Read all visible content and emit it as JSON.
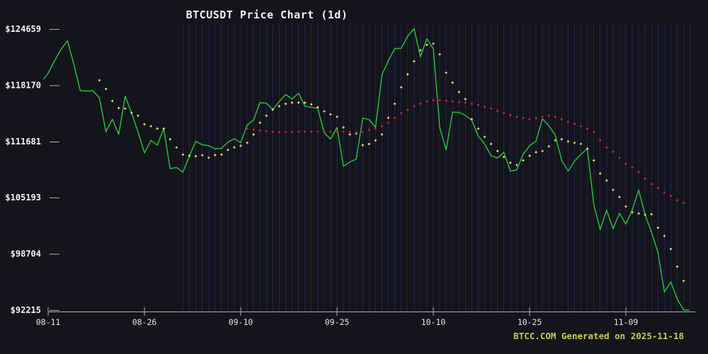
{
  "chart": {
    "title": "BTCUSDT Price Chart (1d)",
    "watermark": "BTCC.COM Generated on 2025-11-18"
  },
  "chart_data": {
    "type": "line",
    "title": "BTCUSDT Price Chart (1d)",
    "watermark": "BTCC.COM Generated on 2025-11-18",
    "x_axis": {
      "unit": "day index (0 = 08-11, daily candles)",
      "ticks": [
        {
          "day": 0,
          "label": "08-11"
        },
        {
          "day": 15,
          "label": "08-26"
        },
        {
          "day": 30,
          "label": "09-10"
        },
        {
          "day": 45,
          "label": "09-25"
        },
        {
          "day": 60,
          "label": "10-10"
        },
        {
          "day": 75,
          "label": "10-25"
        },
        {
          "day": 90,
          "label": "11-09"
        }
      ]
    },
    "y_axis": {
      "tick_values": [
        124659,
        118170,
        111681,
        105193,
        98704,
        92215
      ],
      "tick_labels": [
        "$124659",
        "$118170",
        "$111681",
        "$105193",
        "$98704",
        "$92215"
      ]
    },
    "grid": {
      "vertical_day_stripes_from_day": 21,
      "vertical_day_stripes_to_day": 100
    },
    "colors": {
      "background": "#14141c",
      "stripe": "#22224e",
      "price_line": "#25c83c",
      "ma_fast": "#e9e97f",
      "ma_slow": "#d8234a",
      "axis": "#b0b0b0",
      "x_tick_label": "#e4e4e4",
      "y_tick_label": "#f5f5f5"
    },
    "series": [
      {
        "name": "price",
        "style": "line",
        "color_key": "price_line",
        "points": [
          [
            -0.7,
            118900
          ],
          [
            0,
            119550
          ],
          [
            1,
            121000
          ],
          [
            2,
            122300
          ],
          [
            3,
            123300
          ],
          [
            4,
            120600
          ],
          [
            5,
            117550
          ],
          [
            6,
            117520
          ],
          [
            7,
            117520
          ],
          [
            8,
            116700
          ],
          [
            9,
            112800
          ],
          [
            10,
            114250
          ],
          [
            11,
            112500
          ],
          [
            12,
            116900
          ],
          [
            13,
            114950
          ],
          [
            14,
            112800
          ],
          [
            15,
            110350
          ],
          [
            16,
            111800
          ],
          [
            17,
            111260
          ],
          [
            18,
            113160
          ],
          [
            19,
            108540
          ],
          [
            20,
            108670
          ],
          [
            21,
            108130
          ],
          [
            22,
            110000
          ],
          [
            23,
            111700
          ],
          [
            24,
            111300
          ],
          [
            25,
            111200
          ],
          [
            26,
            110850
          ],
          [
            27,
            110900
          ],
          [
            28,
            111600
          ],
          [
            29,
            112000
          ],
          [
            30,
            111550
          ],
          [
            31,
            113570
          ],
          [
            32,
            114150
          ],
          [
            33,
            116160
          ],
          [
            34,
            116100
          ],
          [
            35,
            115350
          ],
          [
            36,
            116300
          ],
          [
            37,
            117100
          ],
          [
            38,
            116580
          ],
          [
            39,
            117250
          ],
          [
            40,
            115760
          ],
          [
            41,
            115620
          ],
          [
            42,
            115500
          ],
          [
            43,
            112700
          ],
          [
            44,
            111950
          ],
          [
            45,
            113300
          ],
          [
            46,
            108810
          ],
          [
            47,
            109300
          ],
          [
            48,
            109650
          ],
          [
            49,
            114390
          ],
          [
            50,
            114200
          ],
          [
            51,
            113300
          ],
          [
            52,
            119400
          ],
          [
            53,
            121000
          ],
          [
            54,
            122400
          ],
          [
            55,
            122430
          ],
          [
            56,
            123800
          ],
          [
            57,
            124700
          ],
          [
            58,
            121450
          ],
          [
            59,
            123550
          ],
          [
            60,
            122400
          ],
          [
            61,
            113300
          ],
          [
            62,
            110700
          ],
          [
            63,
            115070
          ],
          [
            64,
            115030
          ],
          [
            65,
            114700
          ],
          [
            66,
            114120
          ],
          [
            67,
            112300
          ],
          [
            68,
            111400
          ],
          [
            69,
            110030
          ],
          [
            70,
            109760
          ],
          [
            71,
            110440
          ],
          [
            72,
            108260
          ],
          [
            73,
            108400
          ],
          [
            74,
            110200
          ],
          [
            75,
            111200
          ],
          [
            76,
            111700
          ],
          [
            77,
            114300
          ],
          [
            78,
            113500
          ],
          [
            79,
            112400
          ],
          [
            80,
            109500
          ],
          [
            81,
            108260
          ],
          [
            82,
            109400
          ],
          [
            83,
            110200
          ],
          [
            84,
            110850
          ],
          [
            85,
            104400
          ],
          [
            86,
            101500
          ],
          [
            87,
            103770
          ],
          [
            88,
            101600
          ],
          [
            89,
            103400
          ],
          [
            90,
            102130
          ],
          [
            91,
            103800
          ],
          [
            92,
            106080
          ],
          [
            93,
            103200
          ],
          [
            94,
            101200
          ],
          [
            95,
            98860
          ],
          [
            96,
            94300
          ],
          [
            97,
            95460
          ],
          [
            98,
            93500
          ],
          [
            99,
            92215
          ],
          [
            99.8,
            92215
          ]
        ]
      },
      {
        "name": "ma-fast",
        "style": "plus-markers",
        "color_key": "ma_fast",
        "start_day": 8,
        "values": [
          118740,
          117740,
          116350,
          115530,
          115480,
          114990,
          114660,
          113660,
          113440,
          113170,
          113170,
          111940,
          110990,
          110170,
          110030,
          109980,
          110090,
          109810,
          110110,
          110170,
          110710,
          111000,
          111180,
          111530,
          112490,
          113850,
          114660,
          115350,
          115750,
          116030,
          116160,
          116160,
          116160,
          115970,
          115620,
          115160,
          114800,
          114530,
          113300,
          112490,
          112600,
          111260,
          111390,
          111800,
          112490,
          114400,
          116030,
          117930,
          119430,
          120930,
          122200,
          122830,
          122970,
          121740,
          119620,
          118480,
          117390,
          116570,
          114260,
          113170,
          112210,
          111400,
          110580,
          109890,
          109220,
          108950,
          109490,
          110030,
          110440,
          110580,
          111120,
          111810,
          111940,
          111670,
          111530,
          111400,
          110850,
          109490,
          107990,
          107170,
          106090,
          105270,
          104180,
          103500,
          103360,
          103220,
          103280,
          101730,
          100780,
          99270,
          97230,
          95590
        ]
      },
      {
        "name": "ma-slow",
        "style": "plus-markers",
        "color_key": "ma_slow",
        "start_day": 31,
        "values": [
          113170,
          113050,
          112950,
          112870,
          112810,
          112760,
          112750,
          112780,
          112800,
          112820,
          112810,
          112820,
          112830,
          112810,
          112790,
          112810,
          112760,
          112710,
          112760,
          113030,
          113170,
          113440,
          113850,
          114390,
          114940,
          115350,
          115750,
          116030,
          116300,
          116430,
          116430,
          116380,
          116300,
          116220,
          116160,
          116030,
          115890,
          115680,
          115480,
          115210,
          114940,
          114730,
          114530,
          114390,
          114260,
          114390,
          114530,
          114660,
          114530,
          114260,
          113950,
          113710,
          113440,
          113170,
          112760,
          111800,
          111000,
          110500,
          109800,
          109100,
          108700,
          108150,
          107400,
          106750,
          106300,
          105800,
          105400,
          104900,
          104580
        ]
      }
    ]
  }
}
